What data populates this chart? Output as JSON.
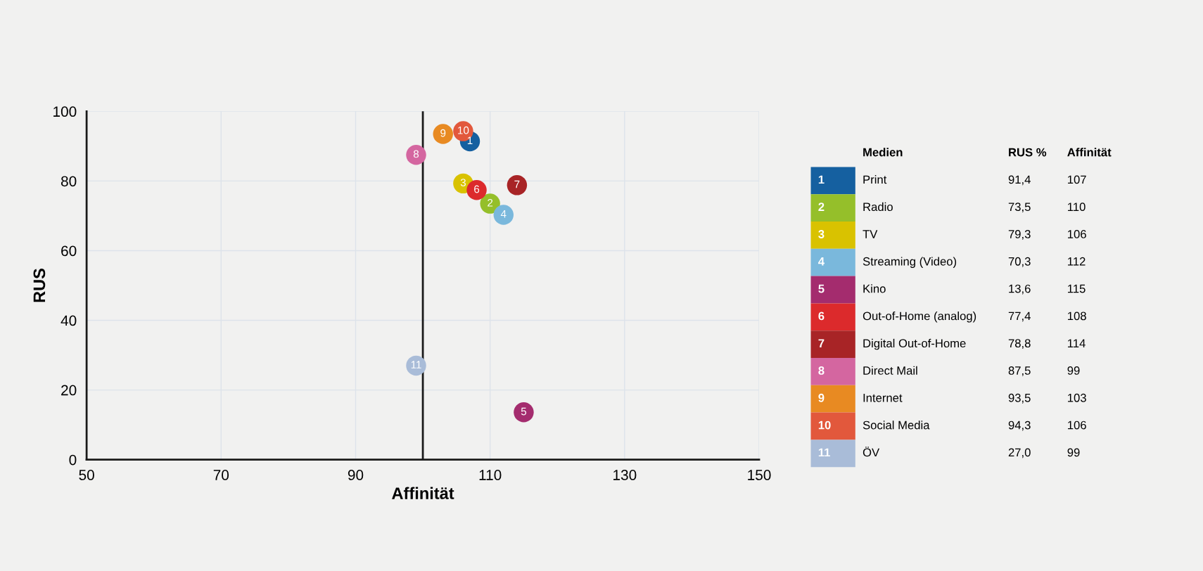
{
  "chart_data": {
    "type": "scatter",
    "xlabel": "Affinität",
    "ylabel": "RUS",
    "xlim": [
      50,
      150
    ],
    "xticks": [
      50,
      70,
      90,
      110,
      130,
      150
    ],
    "ylim": [
      0,
      100
    ],
    "yticks": [
      0,
      20,
      40,
      60,
      80,
      100
    ],
    "grid": true,
    "legend": "right",
    "marker": "circle",
    "ref_lines": [
      {
        "axis": "x",
        "value": 100,
        "color": "#1a1a1a"
      }
    ],
    "series": [
      {
        "name": "Print",
        "color": "#1560a0",
        "x": [
          107
        ],
        "values": [
          91.4
        ]
      },
      {
        "name": "Radio",
        "color": "#95bf2a",
        "x": [
          110
        ],
        "values": [
          73.5
        ]
      },
      {
        "name": "TV",
        "color": "#d9c200",
        "x": [
          106
        ],
        "values": [
          79.3
        ]
      },
      {
        "name": "Streaming (Video)",
        "color": "#7ab8dc",
        "x": [
          112
        ],
        "values": [
          70.3
        ]
      },
      {
        "name": "Kino",
        "color": "#a42c6e",
        "x": [
          115
        ],
        "values": [
          13.6
        ]
      },
      {
        "name": "Out-of-Home (analog)",
        "color": "#dc2a2c",
        "x": [
          108
        ],
        "values": [
          77.4
        ]
      },
      {
        "name": "Digital Out-of-Home",
        "color": "#a82426",
        "x": [
          114
        ],
        "values": [
          78.8
        ]
      },
      {
        "name": "Direct Mail",
        "color": "#d466a0",
        "x": [
          99
        ],
        "values": [
          87.5
        ]
      },
      {
        "name": "Internet",
        "color": "#e88a22",
        "x": [
          103
        ],
        "values": [
          93.5
        ]
      },
      {
        "name": "Social Media",
        "color": "#e2583c",
        "x": [
          106
        ],
        "values": [
          94.3
        ]
      },
      {
        "name": "ÖV",
        "color": "#a9bcd8",
        "x": [
          99
        ],
        "values": [
          27.0
        ]
      }
    ],
    "annotations": [
      "Medien",
      "RUS %",
      "Affinität",
      "91,4",
      "107",
      "73,5",
      "110",
      "79,3",
      "106",
      "70,3",
      "112",
      "13,6",
      "115",
      "77,4",
      "108",
      "78,8",
      "114",
      "87,5",
      "99",
      "93,5",
      "103",
      "94,3",
      "106",
      "27,0",
      "99",
      {
        "text": "1",
        "x": 107,
        "y": 91.4
      },
      {
        "text": "2",
        "x": 110,
        "y": 73.5
      },
      {
        "text": "3",
        "x": 106,
        "y": 79.3
      },
      {
        "text": "4",
        "x": 112,
        "y": 70.3
      },
      {
        "text": "5",
        "x": 115,
        "y": 13.6
      },
      {
        "text": "6",
        "x": 108,
        "y": 77.4
      },
      {
        "text": "7",
        "x": 114,
        "y": 78.8
      },
      {
        "text": "8",
        "x": 99,
        "y": 87.5
      },
      {
        "text": "9",
        "x": 103,
        "y": 93.5
      },
      {
        "text": "10",
        "x": 106,
        "y": 94.3
      },
      {
        "text": "11",
        "x": 99,
        "y": 27.0
      }
    ]
  }
}
